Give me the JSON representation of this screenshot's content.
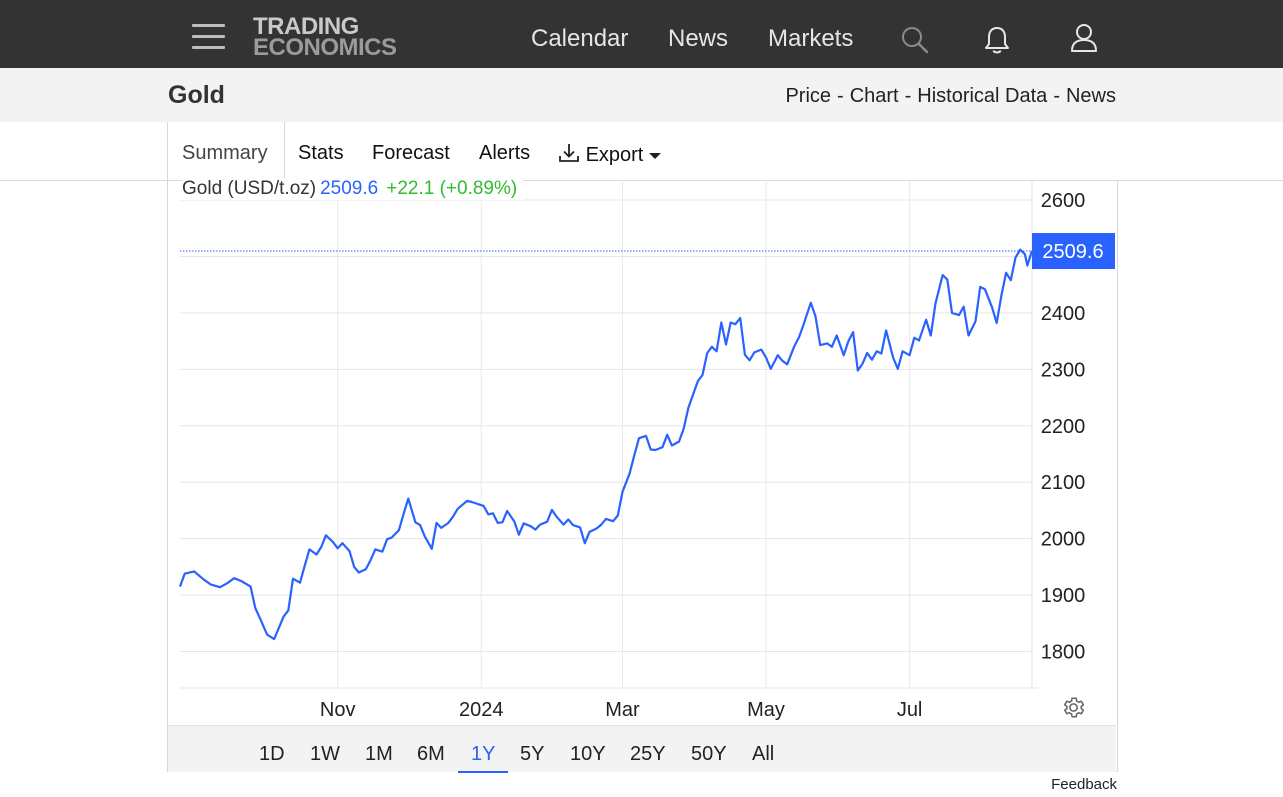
{
  "header": {
    "logo_line1": "TRADING",
    "logo_line2": "ECONOMICS",
    "nav": [
      "Calendar",
      "News",
      "Markets"
    ],
    "icons": [
      "menu-icon",
      "search-icon",
      "bell-icon",
      "user-icon"
    ]
  },
  "page": {
    "title": "Gold",
    "breadcrumbs": [
      "Price",
      "Chart",
      "Historical Data",
      "News"
    ],
    "breadcrumb_separator": "-"
  },
  "tabs": [
    "Summary",
    "Stats",
    "Forecast",
    "Alerts"
  ],
  "export_label": "Export",
  "legend": {
    "name": "Gold (USD/t.oz)",
    "price": "2509.6",
    "change": "+22.1 (+0.89%)"
  },
  "ranges": [
    "1D",
    "1W",
    "1M",
    "6M",
    "1Y",
    "5Y",
    "10Y",
    "25Y",
    "50Y",
    "All"
  ],
  "active_range": "1Y",
  "feedback_label": "Feedback",
  "chart_data": {
    "type": "line",
    "title": "Gold (USD/t.oz)",
    "current_value": 2509.6,
    "current_value_label": "2509.6",
    "y_ticks": [
      1800,
      1900,
      2000,
      2100,
      2200,
      2300,
      2400,
      2500,
      2600
    ],
    "y_tick_labels": [
      "1800",
      "1900",
      "2000",
      "2100",
      "2200",
      "2300",
      "2400",
      "2600"
    ],
    "ylim": [
      1700,
      2600
    ],
    "x_ticks": [
      "2023-11-01",
      "2024-01-01",
      "2024-03-01",
      "2024-05-01",
      "2024-07-01"
    ],
    "x_tick_labels": [
      "Nov",
      "2024",
      "Mar",
      "May",
      "Jul"
    ],
    "xlim": [
      "2023-08-26",
      "2024-08-22"
    ],
    "grid": true,
    "line_color": "#2962ff",
    "series": [
      {
        "name": "Gold (USD/t.oz)",
        "points": [
          [
            "2023-08-26",
            1915
          ],
          [
            "2023-08-28",
            1938
          ],
          [
            "2023-09-01",
            1942
          ],
          [
            "2023-09-05",
            1928
          ],
          [
            "2023-09-08",
            1919
          ],
          [
            "2023-09-12",
            1914
          ],
          [
            "2023-09-15",
            1921
          ],
          [
            "2023-09-18",
            1930
          ],
          [
            "2023-09-21",
            1925
          ],
          [
            "2023-09-25",
            1915
          ],
          [
            "2023-09-27",
            1877
          ],
          [
            "2023-09-29",
            1859
          ],
          [
            "2023-10-02",
            1830
          ],
          [
            "2023-10-05",
            1822
          ],
          [
            "2023-10-06",
            1832
          ],
          [
            "2023-10-09",
            1862
          ],
          [
            "2023-10-11",
            1873
          ],
          [
            "2023-10-13",
            1929
          ],
          [
            "2023-10-16",
            1922
          ],
          [
            "2023-10-18",
            1952
          ],
          [
            "2023-10-20",
            1981
          ],
          [
            "2023-10-23",
            1972
          ],
          [
            "2023-10-25",
            1985
          ],
          [
            "2023-10-27",
            2006
          ],
          [
            "2023-10-30",
            1994
          ],
          [
            "2023-11-01",
            1983
          ],
          [
            "2023-11-03",
            1992
          ],
          [
            "2023-11-06",
            1978
          ],
          [
            "2023-11-08",
            1950
          ],
          [
            "2023-11-10",
            1940
          ],
          [
            "2023-11-13",
            1946
          ],
          [
            "2023-11-15",
            1962
          ],
          [
            "2023-11-17",
            1981
          ],
          [
            "2023-11-20",
            1977
          ],
          [
            "2023-11-22",
            1999
          ],
          [
            "2023-11-24",
            2002
          ],
          [
            "2023-11-27",
            2015
          ],
          [
            "2023-11-29",
            2044
          ],
          [
            "2023-12-01",
            2071
          ],
          [
            "2023-12-04",
            2029
          ],
          [
            "2023-12-06",
            2024
          ],
          [
            "2023-12-08",
            2004
          ],
          [
            "2023-12-11",
            1982
          ],
          [
            "2023-12-13",
            2028
          ],
          [
            "2023-12-15",
            2019
          ],
          [
            "2023-12-18",
            2028
          ],
          [
            "2023-12-20",
            2039
          ],
          [
            "2023-12-22",
            2053
          ],
          [
            "2023-12-26",
            2067
          ],
          [
            "2023-12-28",
            2065
          ],
          [
            "2024-01-02",
            2058
          ],
          [
            "2024-01-04",
            2043
          ],
          [
            "2024-01-06",
            2045
          ],
          [
            "2024-01-08",
            2028
          ],
          [
            "2024-01-10",
            2029
          ],
          [
            "2024-01-12",
            2049
          ],
          [
            "2024-01-15",
            2031
          ],
          [
            "2024-01-17",
            2007
          ],
          [
            "2024-01-19",
            2027
          ],
          [
            "2024-01-22",
            2022
          ],
          [
            "2024-01-24",
            2016
          ],
          [
            "2024-01-26",
            2025
          ],
          [
            "2024-01-29",
            2030
          ],
          [
            "2024-01-31",
            2051
          ],
          [
            "2024-02-02",
            2039
          ],
          [
            "2024-02-05",
            2025
          ],
          [
            "2024-02-07",
            2034
          ],
          [
            "2024-02-09",
            2024
          ],
          [
            "2024-02-12",
            2020
          ],
          [
            "2024-02-14",
            1992
          ],
          [
            "2024-02-16",
            2012
          ],
          [
            "2024-02-19",
            2018
          ],
          [
            "2024-02-21",
            2025
          ],
          [
            "2024-02-23",
            2035
          ],
          [
            "2024-02-26",
            2031
          ],
          [
            "2024-02-28",
            2041
          ],
          [
            "2024-03-01",
            2083
          ],
          [
            "2024-03-04",
            2115
          ],
          [
            "2024-03-06",
            2147
          ],
          [
            "2024-03-08",
            2178
          ],
          [
            "2024-03-11",
            2182
          ],
          [
            "2024-03-13",
            2158
          ],
          [
            "2024-03-15",
            2157
          ],
          [
            "2024-03-18",
            2162
          ],
          [
            "2024-03-20",
            2184
          ],
          [
            "2024-03-22",
            2165
          ],
          [
            "2024-03-25",
            2172
          ],
          [
            "2024-03-27",
            2195
          ],
          [
            "2024-03-29",
            2232
          ],
          [
            "2024-04-02",
            2279
          ],
          [
            "2024-04-04",
            2290
          ],
          [
            "2024-04-06",
            2329
          ],
          [
            "2024-04-08",
            2340
          ],
          [
            "2024-04-10",
            2332
          ],
          [
            "2024-04-12",
            2383
          ],
          [
            "2024-04-14",
            2344
          ],
          [
            "2024-04-16",
            2383
          ],
          [
            "2024-04-18",
            2380
          ],
          [
            "2024-04-20",
            2391
          ],
          [
            "2024-04-22",
            2326
          ],
          [
            "2024-04-24",
            2316
          ],
          [
            "2024-04-26",
            2330
          ],
          [
            "2024-04-29",
            2335
          ],
          [
            "2024-05-01",
            2321
          ],
          [
            "2024-05-03",
            2301
          ],
          [
            "2024-05-06",
            2325
          ],
          [
            "2024-05-08",
            2315
          ],
          [
            "2024-05-10",
            2309
          ],
          [
            "2024-05-13",
            2341
          ],
          [
            "2024-05-15",
            2357
          ],
          [
            "2024-05-17",
            2380
          ],
          [
            "2024-05-20",
            2418
          ],
          [
            "2024-05-22",
            2394
          ],
          [
            "2024-05-24",
            2343
          ],
          [
            "2024-05-27",
            2346
          ],
          [
            "2024-05-29",
            2340
          ],
          [
            "2024-05-31",
            2360
          ],
          [
            "2024-06-03",
            2325
          ],
          [
            "2024-06-05",
            2350
          ],
          [
            "2024-06-07",
            2366
          ],
          [
            "2024-06-09",
            2298
          ],
          [
            "2024-06-11",
            2310
          ],
          [
            "2024-06-13",
            2329
          ],
          [
            "2024-06-15",
            2317
          ],
          [
            "2024-06-17",
            2332
          ],
          [
            "2024-06-19",
            2328
          ],
          [
            "2024-06-21",
            2369
          ],
          [
            "2024-06-24",
            2321
          ],
          [
            "2024-06-26",
            2301
          ],
          [
            "2024-06-28",
            2332
          ],
          [
            "2024-07-01",
            2325
          ],
          [
            "2024-07-03",
            2356
          ],
          [
            "2024-07-05",
            2351
          ],
          [
            "2024-07-08",
            2388
          ],
          [
            "2024-07-10",
            2360
          ],
          [
            "2024-07-12",
            2417
          ],
          [
            "2024-07-15",
            2467
          ],
          [
            "2024-07-17",
            2459
          ],
          [
            "2024-07-19",
            2400
          ],
          [
            "2024-07-22",
            2396
          ],
          [
            "2024-07-24",
            2411
          ],
          [
            "2024-07-26",
            2360
          ],
          [
            "2024-07-29",
            2385
          ],
          [
            "2024-07-31",
            2446
          ],
          [
            "2024-08-02",
            2442
          ],
          [
            "2024-08-05",
            2410
          ],
          [
            "2024-08-07",
            2382
          ],
          [
            "2024-08-09",
            2431
          ],
          [
            "2024-08-11",
            2471
          ],
          [
            "2024-08-13",
            2458
          ],
          [
            "2024-08-15",
            2498
          ],
          [
            "2024-08-17",
            2512
          ],
          [
            "2024-08-19",
            2504
          ],
          [
            "2024-08-20",
            2484
          ],
          [
            "2024-08-22",
            2510
          ]
        ]
      }
    ]
  },
  "colors": {
    "header_bg": "#333333",
    "accent": "#2962ff",
    "positive": "#2fbd2f",
    "subheader_bg": "#f3f3f3"
  }
}
